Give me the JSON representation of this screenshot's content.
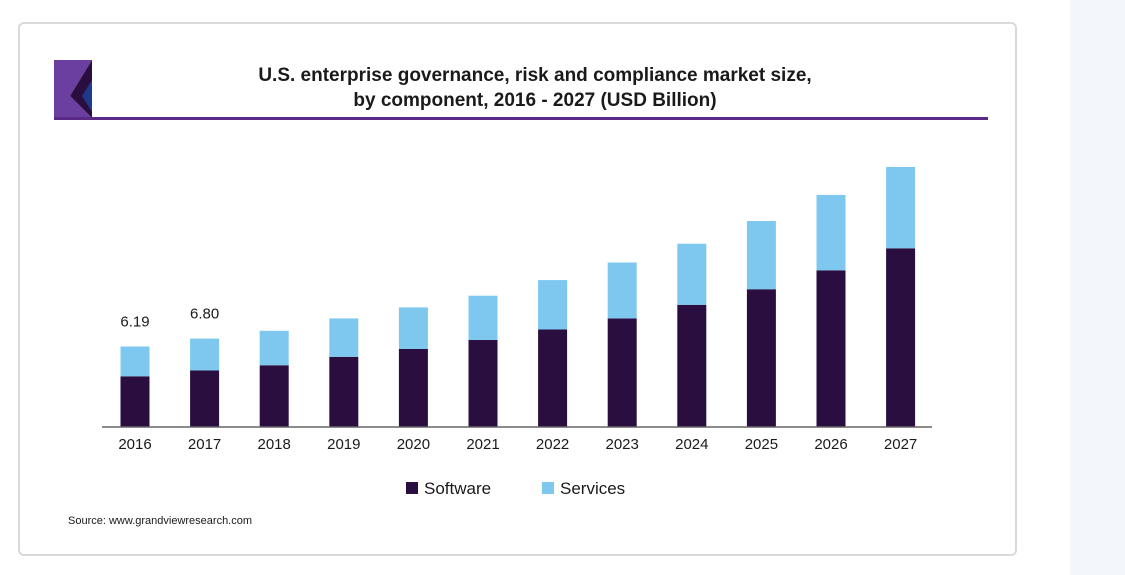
{
  "chart_data": {
    "type": "bar",
    "stacked": true,
    "title": "U.S. enterprise governance, risk and compliance market size, by component, 2016 - 2027 (USD Billion)",
    "title_lines": [
      "U.S. enterprise governance, risk and compliance market size,",
      "by component, 2016 - 2027 (USD Billion)"
    ],
    "xlabel": "",
    "ylabel": "",
    "ylim": [
      0,
      20
    ],
    "categories": [
      "2016",
      "2017",
      "2018",
      "2019",
      "2020",
      "2021",
      "2022",
      "2023",
      "2024",
      "2025",
      "2026",
      "2027"
    ],
    "series": [
      {
        "name": "Software",
        "color": "#2a0e3f",
        "values": [
          3.9,
          4.35,
          4.75,
          5.4,
          6.0,
          6.7,
          7.5,
          8.35,
          9.4,
          10.6,
          12.05,
          13.75
        ]
      },
      {
        "name": "Services",
        "color": "#7ec8f0",
        "values": [
          2.29,
          2.45,
          2.65,
          2.95,
          3.2,
          3.4,
          3.8,
          4.3,
          4.7,
          5.25,
          5.8,
          6.25
        ]
      }
    ],
    "data_labels": [
      {
        "category": "2016",
        "text": "6.19"
      },
      {
        "category": "2017",
        "text": "6.80"
      }
    ],
    "legend": {
      "position": "bottom",
      "items": [
        "Software",
        "Services"
      ]
    },
    "grid": false,
    "source": "Source: www.grandviewresearch.com"
  },
  "colors": {
    "logo_purple": "#6b3fa0",
    "logo_navy": "#2a0e3f",
    "logo_blue": "#1f3a8a",
    "title_rule": "#5b2a86",
    "axis": "#666666"
  }
}
